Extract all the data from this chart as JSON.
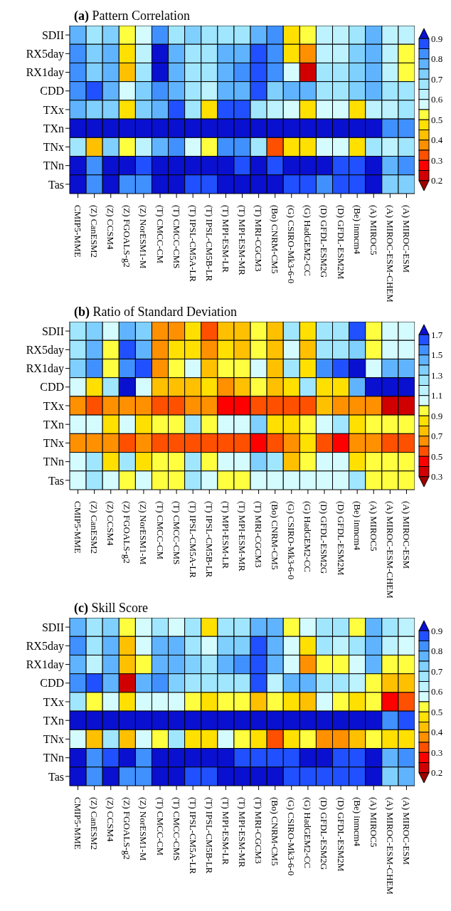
{
  "chart_data": [
    {
      "type": "heatmap",
      "title": "(a) Pattern Correlation",
      "categories": [
        "CMIP5-MME",
        "(Z) CanESM2",
        "(Z) CCSM4",
        "(Z) FGOALS-g2",
        "(Z) NorESM1-M",
        "(T) CMCC-CM",
        "(T) CMCC-CMS",
        "(T) IPSL-CM5A-LR",
        "(T) IPSL-CM5B-LR",
        "(T) MPI-ESM-LR",
        "(T) MPI-ESM-MR",
        "(T) MRI-CGCM3",
        "(Bo) CNRM-CM5",
        "(G) CSIRO-Mk3-6-0",
        "(G) HadGEM2-CC",
        "(D) GFDL-ESM2G",
        "(D) GFDL-ESM2M",
        "(Be) inmcm4",
        "(A) MIROC5",
        "(A) MIROC-ESM-CHEM",
        "(A) MIROC-ESM"
      ],
      "y_categories": [
        "SDII",
        "RX5day",
        "RX1day",
        "CDD",
        "TXx",
        "TXn",
        "TNx",
        "TNn",
        "Tas"
      ],
      "clim": [
        0.15,
        0.95
      ],
      "cticks": [
        0.2,
        0.3,
        0.4,
        0.5,
        0.6,
        0.7,
        0.8,
        0.9
      ],
      "cells": [
        [
          0.77,
          0.67,
          0.72,
          0.52,
          0.57,
          0.82,
          0.67,
          0.72,
          0.67,
          0.67,
          0.67,
          0.77,
          0.82,
          0.47,
          0.52,
          0.62,
          0.62,
          0.67,
          0.77,
          0.62,
          0.62
        ],
        [
          0.82,
          0.72,
          0.77,
          0.47,
          0.62,
          0.92,
          0.77,
          0.67,
          0.67,
          0.77,
          0.77,
          0.87,
          0.82,
          0.47,
          0.37,
          0.62,
          0.62,
          0.72,
          0.77,
          0.62,
          0.52
        ],
        [
          0.82,
          0.72,
          0.77,
          0.42,
          0.67,
          0.92,
          0.77,
          0.67,
          0.67,
          0.77,
          0.82,
          0.87,
          0.82,
          0.57,
          0.22,
          0.67,
          0.67,
          0.72,
          0.77,
          0.62,
          0.52
        ],
        [
          0.82,
          0.87,
          0.77,
          0.57,
          0.72,
          0.82,
          0.77,
          0.67,
          0.62,
          0.77,
          0.77,
          0.87,
          0.72,
          0.77,
          0.77,
          0.67,
          0.67,
          0.72,
          0.77,
          0.67,
          0.67
        ],
        [
          0.77,
          0.72,
          0.72,
          0.47,
          0.72,
          0.77,
          0.87,
          0.67,
          0.47,
          0.87,
          0.87,
          0.67,
          0.62,
          0.57,
          0.47,
          0.57,
          0.57,
          0.47,
          0.62,
          0.62,
          0.67
        ],
        [
          0.92,
          0.92,
          0.92,
          0.92,
          0.92,
          0.92,
          0.92,
          0.92,
          0.92,
          0.92,
          0.92,
          0.92,
          0.92,
          0.92,
          0.92,
          0.92,
          0.92,
          0.92,
          0.92,
          0.82,
          0.82
        ],
        [
          0.67,
          0.42,
          0.72,
          0.52,
          0.62,
          0.77,
          0.82,
          0.57,
          0.52,
          0.82,
          0.82,
          0.67,
          0.32,
          0.47,
          0.47,
          0.57,
          0.57,
          0.47,
          0.67,
          0.62,
          0.67
        ],
        [
          0.92,
          0.82,
          0.92,
          0.92,
          0.87,
          0.92,
          0.92,
          0.92,
          0.92,
          0.92,
          0.87,
          0.92,
          0.87,
          0.92,
          0.92,
          0.92,
          0.87,
          0.87,
          0.92,
          0.77,
          0.82
        ],
        [
          0.92,
          0.82,
          0.92,
          0.82,
          0.82,
          0.92,
          0.92,
          0.87,
          0.87,
          0.92,
          0.92,
          0.92,
          0.92,
          0.87,
          0.87,
          0.82,
          0.87,
          0.87,
          0.92,
          0.72,
          0.72
        ]
      ]
    },
    {
      "type": "heatmap",
      "title": "(b) Ratio of Standard Deviation",
      "categories": [
        "CMIP5-MME",
        "(Z) CanESM2",
        "(Z) CCSM4",
        "(Z) FGOALS-g2",
        "(Z) NorESM1-M",
        "(T) CMCC-CM",
        "(T) CMCC-CMS",
        "(T) IPSL-CM5A-LR",
        "(T) IPSL-CM5B-LR",
        "(T) MPI-ESM-LR",
        "(T) MPI-ESM-MR",
        "(T) MRI-CGCM3",
        "(Bo) CNRM-CM5",
        "(G) CSIRO-Mk3-6-0",
        "(G) HadGEM2-CC",
        "(D) GFDL-ESM2G",
        "(D) GFDL-ESM2M",
        "(Be) inmcm4",
        "(A) MIROC5",
        "(A) MIROC-ESM-CHEM",
        "(A) MIROC-ESM"
      ],
      "y_categories": [
        "SDII",
        "RX5day",
        "RX1day",
        "CDD",
        "TXx",
        "TXn",
        "TNx",
        "TNn",
        "Tas"
      ],
      "clim": [
        0.2,
        1.8
      ],
      "cticks": [
        0.3,
        0.5,
        0.7,
        0.9,
        1.1,
        1.3,
        1.5,
        1.7
      ],
      "cells": [
        [
          1.25,
          1.35,
          1.05,
          1.45,
          1.35,
          0.65,
          0.65,
          0.85,
          0.55,
          0.75,
          0.75,
          0.95,
          0.75,
          1.25,
          0.85,
          1.25,
          1.25,
          1.65,
          0.95,
          1.05,
          1.05
        ],
        [
          1.25,
          1.45,
          0.95,
          1.65,
          1.45,
          0.65,
          0.85,
          0.85,
          0.65,
          0.85,
          0.75,
          0.95,
          0.75,
          1.05,
          0.75,
          1.25,
          1.25,
          1.35,
          0.95,
          1.05,
          1.05
        ],
        [
          1.35,
          1.55,
          0.95,
          1.55,
          1.65,
          0.65,
          0.95,
          1.05,
          0.75,
          0.95,
          0.95,
          1.05,
          0.75,
          1.25,
          0.85,
          1.55,
          1.65,
          1.75,
          1.05,
          1.45,
          1.45
        ],
        [
          1.05,
          0.85,
          1.25,
          1.75,
          1.05,
          0.75,
          0.75,
          0.75,
          0.85,
          0.65,
          0.75,
          0.95,
          0.75,
          0.85,
          1.25,
          0.85,
          0.85,
          1.45,
          1.75,
          1.75,
          1.75
        ],
        [
          0.65,
          0.55,
          0.65,
          0.65,
          0.65,
          0.55,
          0.55,
          0.65,
          0.65,
          0.45,
          0.45,
          0.55,
          0.55,
          0.55,
          0.55,
          0.75,
          0.65,
          0.65,
          0.65,
          0.35,
          0.35
        ],
        [
          1.05,
          1.05,
          0.85,
          1.05,
          0.85,
          0.95,
          0.95,
          1.25,
          0.95,
          1.05,
          1.05,
          1.35,
          0.85,
          0.85,
          0.95,
          1.05,
          1.25,
          0.85,
          0.95,
          0.95,
          0.95
        ],
        [
          0.65,
          0.65,
          0.65,
          0.55,
          0.65,
          0.55,
          0.55,
          0.55,
          0.55,
          0.55,
          0.55,
          0.45,
          0.55,
          0.65,
          0.85,
          0.55,
          0.45,
          0.65,
          0.65,
          0.55,
          0.55
        ],
        [
          1.05,
          1.25,
          0.85,
          1.25,
          0.85,
          0.95,
          0.95,
          1.25,
          0.95,
          1.05,
          1.05,
          1.35,
          1.25,
          0.75,
          0.95,
          1.05,
          1.05,
          0.85,
          0.95,
          0.95,
          0.95
        ],
        [
          1.05,
          1.25,
          1.05,
          0.95,
          1.05,
          0.95,
          0.95,
          1.25,
          1.05,
          0.95,
          0.95,
          1.05,
          1.05,
          1.05,
          1.05,
          1.05,
          1.05,
          1.25,
          0.95,
          0.95,
          0.95
        ]
      ]
    },
    {
      "type": "heatmap",
      "title": "(c) Skill Score",
      "categories": [
        "CMIP5-MME",
        "(Z) CanESM2",
        "(Z) CCSM4",
        "(Z) FGOALS-g2",
        "(Z) NorESM1-M",
        "(T) CMCC-CM",
        "(T) CMCC-CMS",
        "(T) IPSL-CM5A-LR",
        "(T) IPSL-CM5B-LR",
        "(T) MPI-ESM-LR",
        "(T) MPI-ESM-MR",
        "(T) MRI-CGCM3",
        "(Bo) CNRM-CM5",
        "(G) CSIRO-Mk3-6-0",
        "(G) HadGEM2-CC",
        "(D) GFDL-ESM2G",
        "(D) GFDL-ESM2M",
        "(Be) inmcm4",
        "(A) MIROC5",
        "(A) MIROC-ESM-CHEM",
        "(A) MIROC-ESM"
      ],
      "y_categories": [
        "SDII",
        "RX5day",
        "RX1day",
        "CDD",
        "TXx",
        "TXn",
        "TNx",
        "TNn",
        "Tas"
      ],
      "clim": [
        0.15,
        0.95
      ],
      "cticks": [
        0.2,
        0.3,
        0.4,
        0.5,
        0.6,
        0.7,
        0.8,
        0.9
      ],
      "cells": [
        [
          0.77,
          0.67,
          0.72,
          0.52,
          0.57,
          0.67,
          0.57,
          0.67,
          0.47,
          0.67,
          0.67,
          0.77,
          0.77,
          0.52,
          0.57,
          0.67,
          0.67,
          0.52,
          0.77,
          0.67,
          0.62
        ],
        [
          0.82,
          0.67,
          0.77,
          0.42,
          0.57,
          0.77,
          0.77,
          0.67,
          0.57,
          0.72,
          0.72,
          0.87,
          0.77,
          0.57,
          0.47,
          0.67,
          0.62,
          0.67,
          0.77,
          0.62,
          0.57
        ],
        [
          0.77,
          0.62,
          0.77,
          0.42,
          0.52,
          0.77,
          0.77,
          0.72,
          0.67,
          0.77,
          0.82,
          0.87,
          0.77,
          0.57,
          0.37,
          0.52,
          0.52,
          0.57,
          0.77,
          0.52,
          0.52
        ],
        [
          0.82,
          0.87,
          0.77,
          0.22,
          0.77,
          0.82,
          0.72,
          0.67,
          0.67,
          0.67,
          0.67,
          0.87,
          0.62,
          0.77,
          0.77,
          0.67,
          0.67,
          0.62,
          0.52,
          0.42,
          0.42
        ],
        [
          0.67,
          0.52,
          0.57,
          0.47,
          0.57,
          0.57,
          0.57,
          0.52,
          0.47,
          0.52,
          0.52,
          0.42,
          0.52,
          0.47,
          0.42,
          0.57,
          0.52,
          0.47,
          0.52,
          0.27,
          0.32
        ],
        [
          0.92,
          0.92,
          0.92,
          0.92,
          0.92,
          0.92,
          0.92,
          0.92,
          0.92,
          0.92,
          0.92,
          0.92,
          0.92,
          0.92,
          0.92,
          0.92,
          0.92,
          0.92,
          0.92,
          0.82,
          0.87
        ],
        [
          0.57,
          0.42,
          0.67,
          0.42,
          0.57,
          0.52,
          0.67,
          0.47,
          0.47,
          0.57,
          0.52,
          0.47,
          0.32,
          0.47,
          0.52,
          0.37,
          0.37,
          0.42,
          0.52,
          0.47,
          0.47
        ],
        [
          0.92,
          0.82,
          0.87,
          0.92,
          0.82,
          0.92,
          0.92,
          0.92,
          0.92,
          0.92,
          0.87,
          0.87,
          0.87,
          0.87,
          0.92,
          0.92,
          0.87,
          0.87,
          0.92,
          0.77,
          0.82
        ],
        [
          0.92,
          0.82,
          0.92,
          0.82,
          0.82,
          0.92,
          0.92,
          0.87,
          0.87,
          0.92,
          0.92,
          0.92,
          0.92,
          0.87,
          0.87,
          0.87,
          0.87,
          0.87,
          0.92,
          0.72,
          0.77
        ]
      ]
    }
  ]
}
